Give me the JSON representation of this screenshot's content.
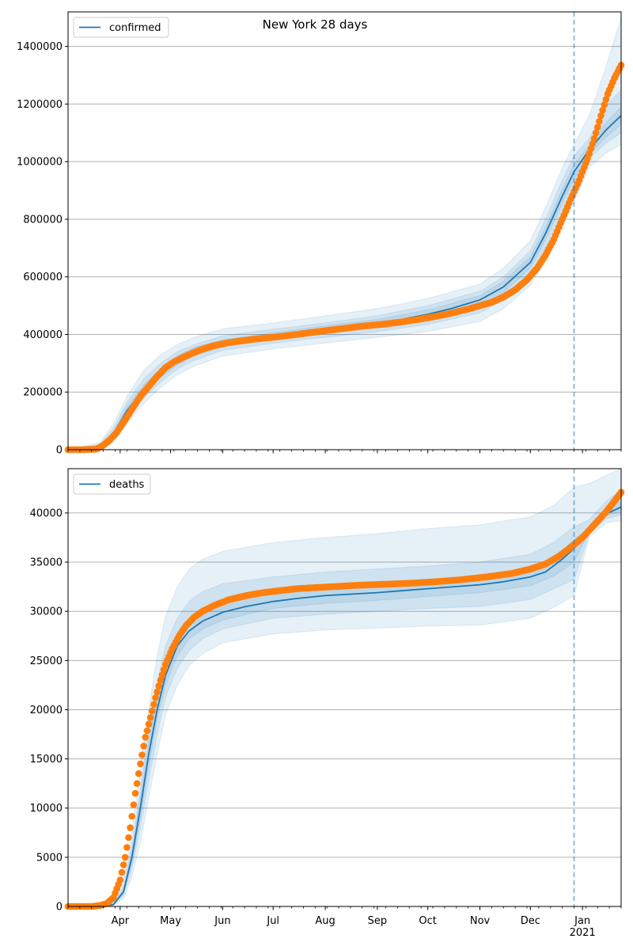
{
  "figure_title": "New York 28 days",
  "colors": {
    "model": "#1f77b4",
    "observed": "#ff7f0e",
    "band": "#1f77b4",
    "grid": "#b0b0b0",
    "forecast_line": "#1f77b4"
  },
  "chart_data": [
    {
      "type": "line",
      "title": "New York 28 days",
      "legend": [
        "confirmed"
      ],
      "legend_position": "top-left",
      "grid": "y",
      "x_range": [
        "2020-03-01",
        "2021-01-24"
      ],
      "ylim": [
        0,
        1520000
      ],
      "y_ticks": [
        0,
        200000,
        400000,
        600000,
        800000,
        1000000,
        1200000,
        1400000
      ],
      "x_ticks": [
        "Apr",
        "May",
        "Jun",
        "Jul",
        "Aug",
        "Sep",
        "Oct",
        "Nov",
        "Dec",
        "Jan"
      ],
      "x_tick_dates": [
        "2020-04-01",
        "2020-05-01",
        "2020-06-01",
        "2020-07-01",
        "2020-08-01",
        "2020-09-01",
        "2020-10-01",
        "2020-11-01",
        "2020-12-01",
        "2021-01-01"
      ],
      "forecast_start": "2020-12-27",
      "model": {
        "name": "confirmed",
        "x": [
          "2020-03-01",
          "2020-03-20",
          "2020-03-28",
          "2020-04-05",
          "2020-04-15",
          "2020-04-25",
          "2020-05-05",
          "2020-05-15",
          "2020-06-01",
          "2020-06-15",
          "2020-07-01",
          "2020-07-15",
          "2020-08-01",
          "2020-08-15",
          "2020-09-01",
          "2020-09-15",
          "2020-10-01",
          "2020-10-15",
          "2020-11-01",
          "2020-11-15",
          "2020-12-01",
          "2020-12-10",
          "2020-12-20",
          "2020-12-27",
          "2021-01-05",
          "2021-01-15",
          "2021-01-24"
        ],
        "y": [
          0,
          10000,
          55000,
          135000,
          210000,
          265000,
          310000,
          340000,
          370000,
          385000,
          395000,
          405000,
          418000,
          428000,
          440000,
          452000,
          470000,
          490000,
          520000,
          565000,
          650000,
          750000,
          880000,
          965000,
          1040000,
          1110000,
          1160000
        ]
      },
      "bands": [
        {
          "x": [
            "2020-03-01",
            "2020-03-20",
            "2020-03-28",
            "2020-04-05",
            "2020-04-15",
            "2020-04-25",
            "2020-05-05",
            "2020-05-15",
            "2020-06-01",
            "2020-07-01",
            "2020-08-01",
            "2020-09-01",
            "2020-10-01",
            "2020-11-01",
            "2020-11-15",
            "2020-12-01",
            "2020-12-10",
            "2020-12-20",
            "2020-12-27",
            "2021-01-05",
            "2021-01-15",
            "2021-01-24"
          ],
          "lower": [
            0,
            0,
            25000,
            90000,
            160000,
            215000,
            260000,
            290000,
            325000,
            350000,
            370000,
            390000,
            410000,
            445000,
            490000,
            570000,
            660000,
            780000,
            860000,
            980000,
            1030000,
            1060000
          ],
          "upper": [
            0,
            25000,
            90000,
            185000,
            275000,
            330000,
            365000,
            390000,
            420000,
            440000,
            465000,
            490000,
            525000,
            575000,
            630000,
            725000,
            840000,
            980000,
            1060000,
            1160000,
            1330000,
            1500000
          ]
        },
        {
          "x": [
            "2020-03-01",
            "2020-03-20",
            "2020-03-28",
            "2020-04-05",
            "2020-04-15",
            "2020-04-25",
            "2020-05-05",
            "2020-05-15",
            "2020-06-01",
            "2020-07-01",
            "2020-08-01",
            "2020-09-01",
            "2020-10-01",
            "2020-11-01",
            "2020-11-15",
            "2020-12-01",
            "2020-12-10",
            "2020-12-20",
            "2020-12-27",
            "2021-01-05",
            "2021-01-15",
            "2021-01-24"
          ],
          "lower": [
            0,
            5000,
            40000,
            110000,
            180000,
            235000,
            280000,
            310000,
            345000,
            370000,
            390000,
            410000,
            435000,
            475000,
            520000,
            605000,
            700000,
            825000,
            910000,
            1010000,
            1065000,
            1100000
          ],
          "upper": [
            0,
            18000,
            75000,
            165000,
            245000,
            300000,
            340000,
            365000,
            395000,
            418000,
            440000,
            465000,
            500000,
            550000,
            600000,
            690000,
            800000,
            935000,
            1020000,
            1080000,
            1190000,
            1250000
          ]
        },
        {
          "x": [
            "2020-03-01",
            "2020-03-20",
            "2020-03-28",
            "2020-04-05",
            "2020-04-15",
            "2020-04-25",
            "2020-05-05",
            "2020-05-15",
            "2020-06-01",
            "2020-07-01",
            "2020-08-01",
            "2020-09-01",
            "2020-10-01",
            "2020-11-01",
            "2020-11-15",
            "2020-12-01",
            "2020-12-10",
            "2020-12-20",
            "2020-12-27",
            "2021-01-05",
            "2021-01-15",
            "2021-01-24"
          ],
          "lower": [
            0,
            8000,
            48000,
            122000,
            195000,
            250000,
            295000,
            325000,
            358000,
            385000,
            405000,
            428000,
            455000,
            500000,
            545000,
            630000,
            728000,
            855000,
            940000,
            1025000,
            1085000,
            1130000
          ],
          "upper": [
            0,
            13000,
            63000,
            148000,
            225000,
            280000,
            325000,
            355000,
            382000,
            406000,
            430000,
            452000,
            485000,
            535000,
            585000,
            670000,
            772000,
            905000,
            990000,
            1055000,
            1135000,
            1190000
          ]
        }
      ],
      "observed": {
        "x": [
          "2020-03-01",
          "2020-03-10",
          "2020-03-18",
          "2020-03-22",
          "2020-03-26",
          "2020-03-30",
          "2020-04-03",
          "2020-04-08",
          "2020-04-13",
          "2020-04-18",
          "2020-04-23",
          "2020-04-28",
          "2020-05-03",
          "2020-05-10",
          "2020-05-18",
          "2020-05-26",
          "2020-06-05",
          "2020-06-15",
          "2020-06-25",
          "2020-07-05",
          "2020-07-15",
          "2020-07-25",
          "2020-08-05",
          "2020-08-15",
          "2020-08-25",
          "2020-09-05",
          "2020-09-15",
          "2020-09-25",
          "2020-10-05",
          "2020-10-15",
          "2020-10-25",
          "2020-11-01",
          "2020-11-08",
          "2020-11-15",
          "2020-11-22",
          "2020-11-29",
          "2020-12-05",
          "2020-12-10",
          "2020-12-15",
          "2020-12-20",
          "2020-12-25",
          "2020-12-30",
          "2021-01-04",
          "2021-01-08",
          "2021-01-12",
          "2021-01-16",
          "2021-01-20",
          "2021-01-24"
        ],
        "y": [
          0,
          0,
          2000,
          15000,
          35000,
          60000,
          95000,
          140000,
          185000,
          220000,
          255000,
          285000,
          305000,
          325000,
          345000,
          360000,
          372000,
          380000,
          387000,
          393000,
          400000,
          408000,
          416000,
          423000,
          430000,
          436000,
          443000,
          452000,
          462000,
          474000,
          488000,
          500000,
          512000,
          530000,
          555000,
          590000,
          630000,
          675000,
          730000,
          800000,
          870000,
          935000,
          1010000,
          1080000,
          1160000,
          1235000,
          1290000,
          1335000
        ]
      }
    },
    {
      "type": "line",
      "title": "",
      "legend": [
        "deaths"
      ],
      "legend_position": "top-left",
      "grid": "y",
      "x_range": [
        "2020-03-01",
        "2021-01-24"
      ],
      "ylim": [
        0,
        44500
      ],
      "y_ticks": [
        0,
        5000,
        10000,
        15000,
        20000,
        25000,
        30000,
        35000,
        40000
      ],
      "x_ticks": [
        "Apr",
        "May",
        "Jun",
        "Jul",
        "Aug",
        "Sep",
        "Oct",
        "Nov",
        "Dec",
        "Jan\n2021"
      ],
      "x_tick_dates": [
        "2020-04-01",
        "2020-05-01",
        "2020-06-01",
        "2020-07-01",
        "2020-08-01",
        "2020-09-01",
        "2020-10-01",
        "2020-11-01",
        "2020-12-01",
        "2021-01-01"
      ],
      "forecast_start": "2020-12-27",
      "model": {
        "name": "deaths",
        "x": [
          "2020-03-01",
          "2020-03-20",
          "2020-03-28",
          "2020-04-03",
          "2020-04-08",
          "2020-04-13",
          "2020-04-18",
          "2020-04-23",
          "2020-04-28",
          "2020-05-05",
          "2020-05-12",
          "2020-05-20",
          "2020-06-01",
          "2020-06-15",
          "2020-07-01",
          "2020-07-15",
          "2020-08-01",
          "2020-09-01",
          "2020-10-01",
          "2020-11-01",
          "2020-11-15",
          "2020-12-01",
          "2020-12-10",
          "2020-12-20",
          "2020-12-27",
          "2021-01-05",
          "2021-01-15",
          "2021-01-24"
        ],
        "y": [
          0,
          0,
          200,
          1500,
          5000,
          10000,
          15500,
          20000,
          23500,
          26500,
          28000,
          29000,
          29900,
          30500,
          31000,
          31300,
          31600,
          31900,
          32300,
          32700,
          33000,
          33500,
          34000,
          35300,
          36400,
          38300,
          39900,
          40600
        ]
      },
      "bands": [
        {
          "x": [
            "2020-03-01",
            "2020-03-20",
            "2020-03-28",
            "2020-04-03",
            "2020-04-08",
            "2020-04-13",
            "2020-04-18",
            "2020-04-23",
            "2020-04-28",
            "2020-05-05",
            "2020-05-12",
            "2020-05-20",
            "2020-06-01",
            "2020-07-01",
            "2020-08-01",
            "2020-09-01",
            "2020-10-01",
            "2020-11-01",
            "2020-12-01",
            "2020-12-15",
            "2020-12-27",
            "2021-01-05",
            "2021-01-15",
            "2021-01-24"
          ],
          "lower": [
            0,
            0,
            100,
            800,
            3000,
            6500,
            11000,
            15500,
            19500,
            22500,
            24500,
            25700,
            26800,
            27700,
            28100,
            28300,
            28500,
            28600,
            29300,
            30400,
            31600,
            37500,
            39000,
            39200
          ],
          "upper": [
            0,
            0,
            350,
            2500,
            7500,
            14000,
            20000,
            25500,
            29500,
            32500,
            34300,
            35300,
            36100,
            37000,
            37500,
            37900,
            38400,
            38800,
            39600,
            40800,
            42600,
            43000,
            43800,
            44500
          ]
        },
        {
          "x": [
            "2020-03-01",
            "2020-03-20",
            "2020-03-28",
            "2020-04-03",
            "2020-04-08",
            "2020-04-13",
            "2020-04-18",
            "2020-04-23",
            "2020-04-28",
            "2020-05-05",
            "2020-05-12",
            "2020-05-20",
            "2020-06-01",
            "2020-07-01",
            "2020-08-01",
            "2020-09-01",
            "2020-10-01",
            "2020-11-01",
            "2020-12-01",
            "2020-12-15",
            "2020-12-27",
            "2021-01-05",
            "2021-01-15",
            "2021-01-24"
          ],
          "lower": [
            0,
            0,
            150,
            1100,
            3900,
            8000,
            12800,
            17500,
            21300,
            24200,
            26000,
            27200,
            28200,
            29300,
            29700,
            30000,
            30300,
            30500,
            31200,
            32300,
            33200,
            37900,
            39400,
            39800
          ],
          "upper": [
            0,
            0,
            280,
            2000,
            6300,
            12000,
            18000,
            22800,
            26500,
            29300,
            31000,
            32000,
            32800,
            33500,
            34000,
            34300,
            34600,
            35000,
            35800,
            37000,
            38600,
            39300,
            41200,
            42300
          ]
        },
        {
          "x": [
            "2020-03-01",
            "2020-03-20",
            "2020-03-28",
            "2020-04-03",
            "2020-04-08",
            "2020-04-13",
            "2020-04-18",
            "2020-04-23",
            "2020-04-28",
            "2020-05-05",
            "2020-05-12",
            "2020-05-20",
            "2020-06-01",
            "2020-07-01",
            "2020-08-01",
            "2020-09-01",
            "2020-10-01",
            "2020-11-01",
            "2020-12-01",
            "2020-12-15",
            "2020-12-27",
            "2021-01-05",
            "2021-01-15",
            "2021-01-24"
          ],
          "lower": [
            0,
            0,
            180,
            1300,
            4400,
            9000,
            14200,
            19000,
            22500,
            25500,
            27200,
            28200,
            29100,
            30300,
            30800,
            31100,
            31500,
            31900,
            32600,
            33600,
            35000,
            38100,
            39700,
            40200
          ],
          "upper": [
            0,
            0,
            240,
            1700,
            5600,
            11000,
            16800,
            21200,
            24700,
            27600,
            29000,
            30000,
            30800,
            31800,
            32300,
            32700,
            33100,
            33500,
            34300,
            35400,
            37300,
            38500,
            40400,
            41200
          ]
        }
      ],
      "observed": {
        "x": [
          "2020-03-01",
          "2020-03-15",
          "2020-03-20",
          "2020-03-24",
          "2020-03-28",
          "2020-04-01",
          "2020-04-04",
          "2020-04-07",
          "2020-04-10",
          "2020-04-13",
          "2020-04-16",
          "2020-04-19",
          "2020-04-22",
          "2020-04-25",
          "2020-04-28",
          "2020-05-02",
          "2020-05-06",
          "2020-05-10",
          "2020-05-15",
          "2020-05-20",
          "2020-05-27",
          "2020-06-05",
          "2020-06-15",
          "2020-06-25",
          "2020-07-05",
          "2020-07-15",
          "2020-07-25",
          "2020-08-05",
          "2020-08-20",
          "2020-09-05",
          "2020-09-20",
          "2020-10-05",
          "2020-10-20",
          "2020-11-05",
          "2020-11-20",
          "2020-12-01",
          "2020-12-10",
          "2020-12-18",
          "2020-12-25",
          "2021-01-01",
          "2021-01-08",
          "2021-01-15",
          "2021-01-20",
          "2021-01-24"
        ],
        "y": [
          0,
          0,
          100,
          300,
          900,
          2700,
          5000,
          8000,
          11500,
          14500,
          17200,
          19200,
          21200,
          23000,
          24600,
          26200,
          27500,
          28500,
          29400,
          30000,
          30600,
          31200,
          31600,
          31900,
          32100,
          32300,
          32400,
          32500,
          32650,
          32750,
          32850,
          33000,
          33200,
          33500,
          33850,
          34300,
          34800,
          35600,
          36500,
          37500,
          38800,
          40100,
          41200,
          42100
        ]
      }
    }
  ]
}
